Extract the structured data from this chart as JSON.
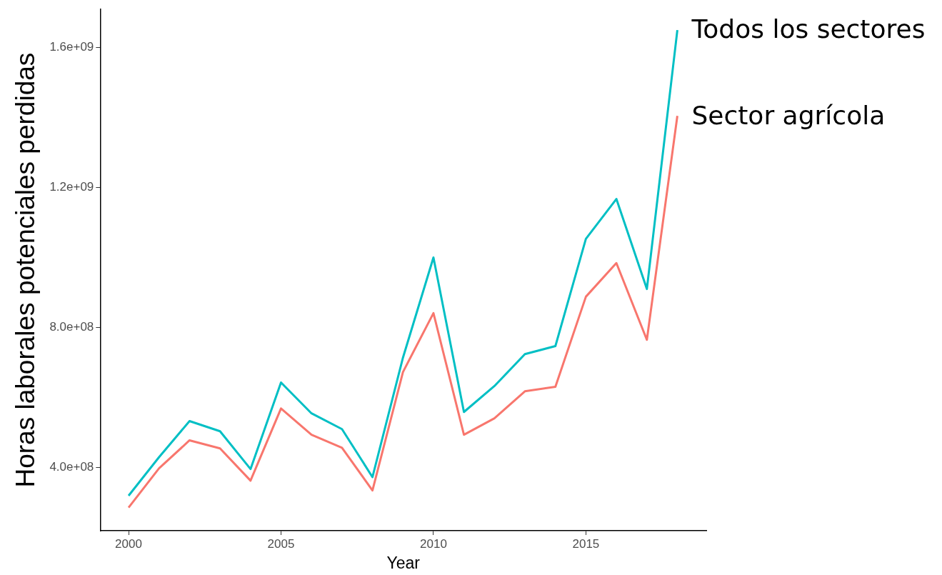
{
  "chart_data": {
    "type": "line",
    "xlabel": "Year",
    "ylabel": "Horas laborales potenciales perdidas",
    "x": [
      2000,
      2001,
      2002,
      2003,
      2004,
      2005,
      2006,
      2007,
      2008,
      2009,
      2010,
      2011,
      2012,
      2013,
      2014,
      2015,
      2016,
      2017,
      2018
    ],
    "xlim": [
      1999.07,
      2018.95
    ],
    "xticks": [
      2000,
      2005,
      2010,
      2015
    ],
    "ylim": [
      220000000,
      1708000000
    ],
    "yticks": [
      {
        "value": 400000000,
        "label": "4.0e+08"
      },
      {
        "value": 800000000,
        "label": "8.0e+08"
      },
      {
        "value": 1200000000,
        "label": "1.2e+09"
      },
      {
        "value": 1600000000,
        "label": "1.6e+09"
      }
    ],
    "grid": false,
    "legend": false,
    "marker": "none",
    "line_style": "solid",
    "series": [
      {
        "name": "Todos los sectores",
        "color": "#00bfc4",
        "values": [
          320000000,
          430000000,
          533000000,
          504000000,
          396000000,
          643000000,
          555000000,
          510000000,
          373000000,
          714000000,
          1000000000,
          559000000,
          633000000,
          724000000,
          747000000,
          1053000000,
          1167000000,
          910000000,
          1649000000
        ]
      },
      {
        "name": "Sector agrícola",
        "color": "#f8766d",
        "values": [
          286000000,
          398000000,
          478000000,
          455000000,
          363000000,
          569000000,
          494000000,
          457000000,
          335000000,
          673000000,
          841000000,
          494000000,
          541000000,
          618000000,
          631000000,
          888000000,
          984000000,
          765000000,
          1404000000
        ]
      }
    ]
  }
}
